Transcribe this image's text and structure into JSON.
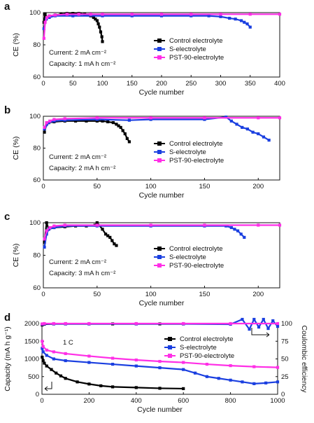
{
  "chart_data": [
    {
      "panel": "a",
      "type": "scatter",
      "xlabel": "Cycle number",
      "ylabel": "CE (%)",
      "xlim": [
        0,
        400
      ],
      "ylim": [
        60,
        100
      ],
      "xticks": [
        0,
        50,
        100,
        150,
        200,
        250,
        300,
        350,
        400
      ],
      "yticks": [
        60,
        80,
        100
      ],
      "annotations": [
        "Current: 2 mA cm⁻²",
        "Capacity: 1 mA h cm⁻²"
      ],
      "legend_position": "right",
      "series": [
        {
          "name": "Control electrolyte",
          "color": "#000000",
          "x": [
            1,
            3,
            6,
            10,
            20,
            30,
            40,
            50,
            60,
            70,
            75,
            80,
            85,
            88,
            91,
            93,
            95,
            97,
            99,
            100
          ],
          "y": [
            94,
            99,
            97,
            98,
            98.5,
            99,
            99.5,
            99.5,
            99.5,
            99,
            98.5,
            98,
            97,
            96,
            95,
            93,
            91,
            88,
            85,
            82
          ]
        },
        {
          "name": "S-electrolyte",
          "color": "#1a3fe0",
          "x": [
            1,
            5,
            10,
            20,
            50,
            100,
            150,
            200,
            250,
            280,
            300,
            315,
            325,
            335,
            340,
            345,
            350
          ],
          "y": [
            90,
            96,
            97,
            98,
            98,
            98,
            98,
            98,
            98,
            98,
            97.5,
            96.5,
            96,
            95,
            94,
            93,
            91
          ]
        },
        {
          "name": "PST-90-electrolyte",
          "color": "#ff2fe6",
          "x": [
            1,
            3,
            6,
            10,
            20,
            40,
            60,
            80,
            100,
            150,
            200,
            250,
            300,
            350,
            400
          ],
          "y": [
            84,
            94,
            97,
            98,
            98.5,
            99,
            99,
            99,
            99,
            99,
            99,
            99,
            99,
            99,
            99
          ]
        }
      ]
    },
    {
      "panel": "b",
      "type": "scatter",
      "xlabel": "Cycle number",
      "ylabel": "CE (%)",
      "xlim": [
        0,
        220
      ],
      "ylim": [
        60,
        100
      ],
      "xticks": [
        0,
        50,
        100,
        150,
        200
      ],
      "yticks": [
        60,
        80,
        100
      ],
      "annotations": [
        "Current: 2 mA cm⁻²",
        "Capacity: 2 mA h cm⁻²"
      ],
      "legend_position": "right",
      "series": [
        {
          "name": "Control electrolyte",
          "color": "#000000",
          "x": [
            1,
            3,
            5,
            10,
            20,
            30,
            40,
            50,
            55,
            60,
            65,
            68,
            70,
            72,
            74,
            76,
            78,
            80
          ],
          "y": [
            90,
            95,
            96,
            96.5,
            97,
            97,
            97,
            97,
            97,
            96.5,
            96,
            95,
            94,
            93,
            91,
            89,
            86,
            84
          ]
        },
        {
          "name": "S-electrolyte",
          "color": "#1a3fe0",
          "x": [
            1,
            5,
            10,
            20,
            50,
            80,
            100,
            150,
            170,
            175,
            180,
            185,
            190,
            195,
            200,
            205,
            210
          ],
          "y": [
            92,
            96,
            97,
            97.5,
            98,
            97.5,
            98,
            98,
            99.5,
            97,
            95,
            93,
            92,
            90,
            89,
            87,
            85
          ]
        },
        {
          "name": "PST-90-electrolyte",
          "color": "#ff2fe6",
          "x": [
            1,
            3,
            6,
            10,
            20,
            50,
            100,
            150,
            200,
            220
          ],
          "y": [
            93,
            96,
            97,
            98,
            98.5,
            99,
            99,
            99,
            99,
            99
          ]
        }
      ]
    },
    {
      "panel": "c",
      "type": "scatter",
      "xlabel": "Cycle number",
      "ylabel": "CE (%)",
      "xlim": [
        0,
        220
      ],
      "ylim": [
        60,
        100
      ],
      "xticks": [
        0,
        50,
        100,
        150,
        200
      ],
      "yticks": [
        60,
        80,
        100
      ],
      "annotations": [
        "Current: 2 mA cm⁻²",
        "Capacity: 3 mA h cm⁻²"
      ],
      "legend_position": "right",
      "series": [
        {
          "name": "Control electrolyte",
          "color": "#000000",
          "x": [
            1,
            3,
            5,
            10,
            20,
            30,
            40,
            48,
            50,
            55,
            58,
            60,
            62,
            64,
            66,
            68
          ],
          "y": [
            88,
            100,
            96,
            97,
            97.5,
            98,
            98,
            98.5,
            100,
            96,
            93,
            92,
            91,
            89,
            87,
            86
          ]
        },
        {
          "name": "S-electrolyte",
          "color": "#1a3fe0",
          "x": [
            1,
            3,
            5,
            10,
            20,
            50,
            100,
            150,
            170,
            175,
            178,
            181,
            184,
            187
          ],
          "y": [
            85,
            93,
            96,
            97,
            98,
            98,
            98,
            98,
            98,
            97,
            96,
            95,
            93,
            91
          ]
        },
        {
          "name": "PST-90-electrolyte",
          "color": "#ff2fe6",
          "x": [
            1,
            3,
            6,
            10,
            20,
            50,
            100,
            150,
            200,
            220
          ],
          "y": [
            90,
            95,
            97,
            98,
            98.5,
            98.5,
            98.5,
            98.5,
            98.5,
            98.5
          ]
        }
      ]
    },
    {
      "panel": "d",
      "type": "scatter",
      "xlabel": "Cycle number",
      "ylabel": "Capacity (mA h g⁻¹)",
      "y2label": "Coulombic efficiency",
      "xlim": [
        0,
        1000
      ],
      "ylim": [
        0,
        2000
      ],
      "y2lim": [
        0,
        100
      ],
      "xticks": [
        0,
        200,
        400,
        600,
        800,
        1000
      ],
      "yticks": [
        0,
        500,
        1000,
        1500,
        2000
      ],
      "y2ticks": [
        0,
        25,
        50,
        75,
        100
      ],
      "annotations": [
        "1 C"
      ],
      "legend_position": "top-right",
      "series": [
        {
          "name": "Control electrolyte",
          "color": "#000000",
          "axis": "left",
          "x": [
            1,
            5,
            10,
            20,
            40,
            60,
            80,
            100,
            150,
            200,
            250,
            300,
            400,
            500,
            600
          ],
          "y": [
            1050,
            950,
            880,
            800,
            700,
            600,
            520,
            450,
            350,
            290,
            240,
            210,
            190,
            170,
            160
          ]
        },
        {
          "name": "S-electrolyte",
          "color": "#1a3fe0",
          "axis": "left",
          "x": [
            1,
            5,
            20,
            50,
            100,
            200,
            300,
            400,
            500,
            600,
            650,
            700,
            750,
            800,
            850,
            900,
            950,
            1000
          ],
          "y": [
            1300,
            1200,
            1100,
            1000,
            950,
            900,
            850,
            800,
            750,
            700,
            600,
            500,
            450,
            400,
            350,
            300,
            320,
            350
          ]
        },
        {
          "name": "PST-90-electrolyte",
          "color": "#ff2fe6",
          "axis": "left",
          "x": [
            1,
            5,
            20,
            50,
            100,
            200,
            300,
            400,
            500,
            600,
            700,
            800,
            900,
            1000
          ],
          "y": [
            1500,
            1350,
            1250,
            1200,
            1150,
            1080,
            1020,
            970,
            930,
            900,
            850,
            810,
            780,
            760
          ]
        },
        {
          "name": "Control electrolyte CE",
          "color": "#000000",
          "axis": "right",
          "x": [
            1,
            10,
            50,
            100,
            200,
            300,
            400,
            500,
            600
          ],
          "y": [
            98,
            99,
            99.5,
            99.5,
            99.5,
            99.5,
            99.5,
            99.5,
            99.5
          ]
        },
        {
          "name": "S-electrolyte CE",
          "color": "#1a3fe0",
          "axis": "right",
          "x": [
            1,
            10,
            50,
            100,
            200,
            400,
            600,
            800,
            850,
            880,
            900,
            920,
            940,
            960,
            980,
            1000
          ],
          "y": [
            99,
            99.5,
            99.5,
            99.5,
            99.5,
            99.5,
            99.5,
            99,
            107,
            92,
            108,
            95,
            106,
            93,
            104,
            96
          ]
        },
        {
          "name": "PST-90-electrolyte CE",
          "color": "#ff2fe6",
          "axis": "right",
          "x": [
            1,
            10,
            50,
            100,
            200,
            400,
            600,
            800,
            1000
          ],
          "y": [
            99.5,
            100,
            100,
            100,
            100,
            100,
            100,
            100,
            100
          ]
        }
      ]
    }
  ]
}
